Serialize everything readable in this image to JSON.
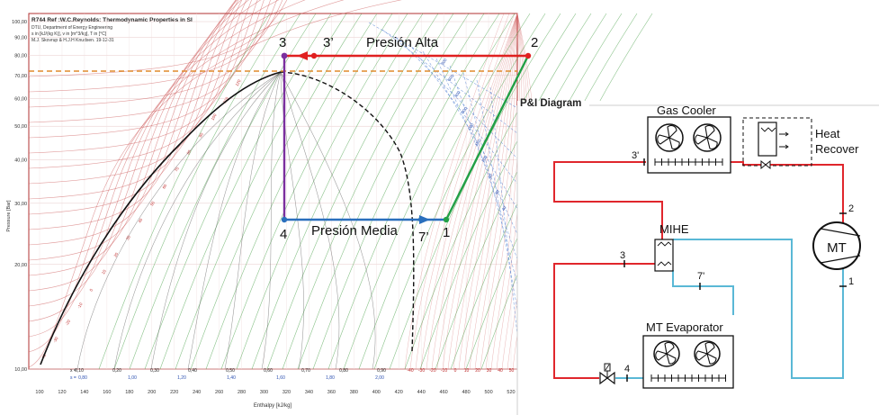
{
  "ph_chart": {
    "header_lines": [
      "R744  Ref :W.C.Reynolds: Thermodynamic Properties in SI",
      "DTU, Department of Energy Engineering",
      "s in [kJ/(kg K)], v in [m^3/kg], T in [°C]",
      "M.J. Skovrup & H.J.H Knudsen. 19-12-31"
    ],
    "y_axis_label": "Pressure [Bar]",
    "x_axis_label": "Enthalpy [kJ/kg]",
    "y_ticks": [
      "10,00",
      "20,00",
      "30,00",
      "40,00",
      "50,00",
      "60,00",
      "70,00",
      "80,00",
      "90,00",
      "100,00"
    ],
    "x_ticks": [
      "100",
      "120",
      "140",
      "160",
      "180",
      "200",
      "220",
      "240",
      "260",
      "280",
      "300",
      "320",
      "340",
      "360",
      "380",
      "400",
      "420",
      "440",
      "460",
      "480",
      "500",
      "520"
    ],
    "quality_label_prefix": "x =",
    "quality_ticks": [
      "0,10",
      "0,20",
      "0,30",
      "0,40",
      "0,50",
      "0,60",
      "0,70",
      "0,80",
      "0,90"
    ],
    "entropy_label_prefix": "s =",
    "entropy_ticks": [
      "0,80",
      "1,00",
      "1,20",
      "1,40",
      "1,60",
      "1,80",
      "2,00"
    ],
    "temp_ticks_bottom": [
      "-40",
      "-30",
      "-20",
      "-10",
      "0",
      "10",
      "20",
      "30",
      "40",
      "50"
    ],
    "isotherm_labels": [
      "-40",
      "-30",
      "-20",
      "-10",
      "0",
      "10",
      "20",
      "30",
      "40",
      "50",
      "60",
      "70",
      "80",
      "90",
      "100",
      "110",
      "120"
    ],
    "density_labels": [
      "800",
      "600",
      "400",
      "300",
      "200",
      "150",
      "100",
      "80",
      "60",
      "40"
    ]
  },
  "cycle": {
    "high_pressure_label": "Presión Alta",
    "medium_pressure_label": "Presión Media",
    "point_labels": {
      "p1": "1",
      "p2": "2",
      "p3": "3",
      "p3prime": "3’",
      "p4": "4",
      "p7prime": "7’"
    },
    "colors": {
      "high": "#e02020",
      "medium": "#2a6fbd",
      "compression": "#22a046",
      "expansion": "#7b2f9e",
      "critical_line": "#e08a2c"
    }
  },
  "pid": {
    "title": "P&I Diagram",
    "gas_cooler_label": "Gas Cooler",
    "heat_recover_label": [
      "Heat",
      "Recover"
    ],
    "mihe_label": "MIHE",
    "mt_label": "MT",
    "evaporator_label": "MT Evaporator",
    "node_labels": {
      "n2": "2",
      "n1": "1",
      "n3": "3",
      "n3prime": "3'",
      "n4": "4",
      "n7prime": "7'"
    },
    "colors": {
      "hot_line": "#e0262c",
      "cold_line": "#5ab8d6"
    }
  }
}
